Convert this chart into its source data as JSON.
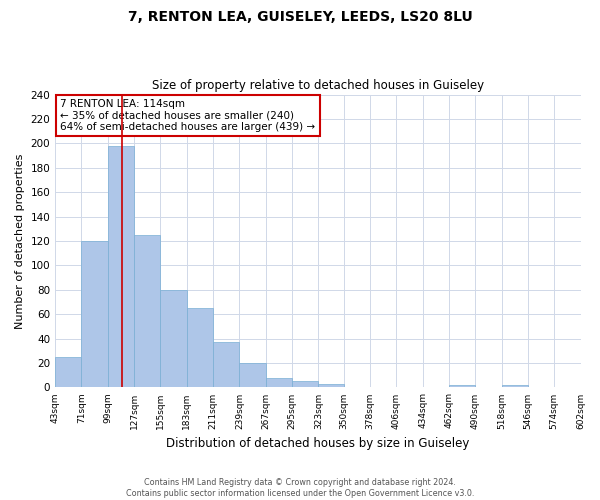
{
  "title": "7, RENTON LEA, GUISELEY, LEEDS, LS20 8LU",
  "subtitle": "Size of property relative to detached houses in Guiseley",
  "xlabel": "Distribution of detached houses by size in Guiseley",
  "ylabel": "Number of detached properties",
  "bin_edges": [
    43,
    71,
    99,
    127,
    155,
    183,
    211,
    239,
    267,
    295,
    323,
    350,
    378,
    406,
    434,
    462,
    490,
    518,
    546,
    574,
    602
  ],
  "bin_labels": [
    "43sqm",
    "71sqm",
    "99sqm",
    "127sqm",
    "155sqm",
    "183sqm",
    "211sqm",
    "239sqm",
    "267sqm",
    "295sqm",
    "323sqm",
    "350sqm",
    "378sqm",
    "406sqm",
    "434sqm",
    "462sqm",
    "490sqm",
    "518sqm",
    "546sqm",
    "574sqm",
    "602sqm"
  ],
  "bar_heights": [
    25,
    120,
    198,
    125,
    80,
    65,
    37,
    20,
    8,
    5,
    3,
    0,
    0,
    0,
    0,
    2,
    0,
    2,
    0,
    0
  ],
  "bar_color": "#aec6e8",
  "bar_edge_color": "#7aafd4",
  "vline_x": 114,
  "vline_color": "#cc0000",
  "ylim": [
    0,
    240
  ],
  "yticks": [
    0,
    20,
    40,
    60,
    80,
    100,
    120,
    140,
    160,
    180,
    200,
    220,
    240
  ],
  "annotation_title": "7 RENTON LEA: 114sqm",
  "annotation_line1": "← 35% of detached houses are smaller (240)",
  "annotation_line2": "64% of semi-detached houses are larger (439) →",
  "annotation_box_color": "#cc0000",
  "footer_line1": "Contains HM Land Registry data © Crown copyright and database right 2024.",
  "footer_line2": "Contains public sector information licensed under the Open Government Licence v3.0.",
  "background_color": "#ffffff",
  "grid_color": "#d0d8e8"
}
